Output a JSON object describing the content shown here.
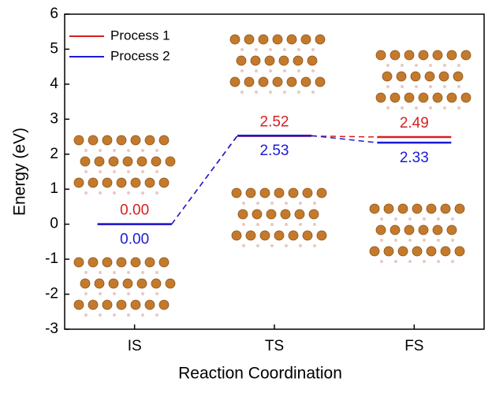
{
  "chart_data": {
    "type": "energy-levels",
    "x_label": "Reaction Coordination",
    "y_label": "Energy (eV)",
    "categories": [
      "IS",
      "TS",
      "FS"
    ],
    "series": [
      {
        "name": "Process 1",
        "color": "#d62020",
        "values": [
          0,
          2.52,
          2.49
        ],
        "value_labels": [
          "0.00",
          "2.52",
          "2.49"
        ]
      },
      {
        "name": "Process 2",
        "color": "#1a1ad6",
        "values": [
          0,
          2.53,
          2.33
        ],
        "value_labels": [
          "0.00",
          "2.53",
          "2.33"
        ]
      }
    ],
    "ylim": [
      -3,
      6
    ],
    "yticks": [
      -3,
      -2,
      -1,
      0,
      1,
      2,
      3,
      4,
      5,
      6
    ],
    "legend": "upper left"
  }
}
